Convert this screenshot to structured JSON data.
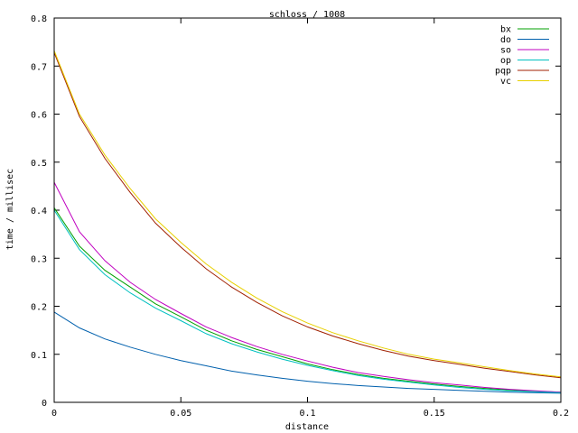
{
  "chart_data": {
    "type": "line",
    "title": "schloss / 1008",
    "xlabel": "distance",
    "ylabel": "time / millisec",
    "xlim": [
      0,
      0.2
    ],
    "ylim": [
      0,
      0.8
    ],
    "x_ticks": [
      "0",
      "0.05",
      "0.1",
      "0.15",
      "0.2"
    ],
    "y_ticks": [
      "0",
      "0.1",
      "0.2",
      "0.3",
      "0.4",
      "0.5",
      "0.6",
      "0.7",
      "0.8"
    ],
    "grid": false,
    "legend_position": "top-right",
    "x": [
      0,
      0.01,
      0.02,
      0.03,
      0.04,
      0.05,
      0.06,
      0.07,
      0.08,
      0.09,
      0.1,
      0.11,
      0.12,
      0.13,
      0.14,
      0.15,
      0.16,
      0.17,
      0.18,
      0.19,
      0.2
    ],
    "series": [
      {
        "name": "bx",
        "color": "#00a000",
        "values": [
          0.405,
          0.325,
          0.275,
          0.24,
          0.205,
          0.178,
          0.15,
          0.128,
          0.11,
          0.095,
          0.08,
          0.068,
          0.058,
          0.05,
          0.044,
          0.038,
          0.033,
          0.029,
          0.026,
          0.023,
          0.021
        ]
      },
      {
        "name": "do",
        "color": "#0060ad",
        "values": [
          0.188,
          0.155,
          0.132,
          0.115,
          0.1,
          0.087,
          0.076,
          0.065,
          0.057,
          0.05,
          0.044,
          0.039,
          0.035,
          0.032,
          0.029,
          0.027,
          0.025,
          0.023,
          0.021,
          0.02,
          0.019
        ]
      },
      {
        "name": "so",
        "color": "#c000c0",
        "values": [
          0.458,
          0.355,
          0.295,
          0.25,
          0.214,
          0.185,
          0.157,
          0.135,
          0.116,
          0.1,
          0.086,
          0.073,
          0.062,
          0.054,
          0.047,
          0.041,
          0.036,
          0.031,
          0.027,
          0.024,
          0.021
        ]
      },
      {
        "name": "op",
        "color": "#00c0c0",
        "values": [
          0.4,
          0.318,
          0.266,
          0.228,
          0.196,
          0.17,
          0.143,
          0.122,
          0.105,
          0.09,
          0.077,
          0.066,
          0.056,
          0.048,
          0.042,
          0.036,
          0.031,
          0.027,
          0.024,
          0.022,
          0.02
        ]
      },
      {
        "name": "pqp",
        "color": "#a02000",
        "values": [
          0.728,
          0.595,
          0.508,
          0.437,
          0.373,
          0.323,
          0.278,
          0.24,
          0.208,
          0.18,
          0.157,
          0.138,
          0.122,
          0.108,
          0.096,
          0.087,
          0.079,
          0.071,
          0.064,
          0.057,
          0.051
        ]
      },
      {
        "name": "vc",
        "color": "#e8d000",
        "values": [
          0.732,
          0.6,
          0.515,
          0.445,
          0.382,
          0.333,
          0.288,
          0.25,
          0.217,
          0.189,
          0.165,
          0.145,
          0.128,
          0.113,
          0.1,
          0.09,
          0.082,
          0.074,
          0.066,
          0.059,
          0.053
        ]
      }
    ]
  }
}
